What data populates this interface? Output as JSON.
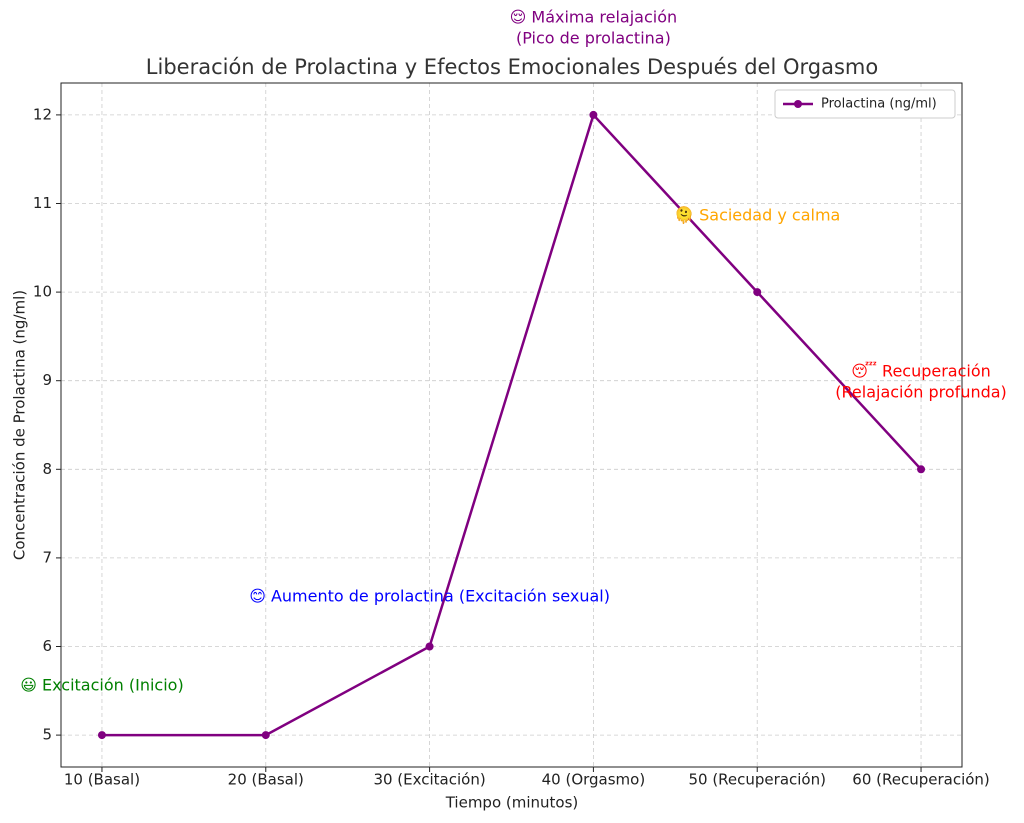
{
  "chart_data": {
    "type": "line",
    "title": "Liberación de Prolactina y Efectos Emocionales Después del Orgasmo",
    "x_label": "Tiempo (minutos)",
    "y_label": "Concentración de Prolactina (ng/ml)",
    "categories": [
      "10 (Basal)",
      "20 (Basal)",
      "30 (Excitación)",
      "40 (Orgasmo)",
      "50 (Recuperación)",
      "60 (Recuperación)"
    ],
    "series": [
      {
        "name": "Prolactina (ng/ml)",
        "color": "#800080",
        "values": [
          5,
          5,
          6,
          12,
          10,
          8
        ]
      }
    ],
    "ylim": [
      4.64,
      12.36
    ],
    "yticks": [
      5,
      6,
      7,
      8,
      9,
      10,
      11,
      12
    ],
    "grid": true,
    "legend": "upper right",
    "annotations": [
      {
        "lines": [
          "😃 Excitación (Inicio)"
        ],
        "color": "#008000"
      },
      {
        "lines": [
          "😊 Aumento de prolactina (Excitación sexual)"
        ],
        "color": "#0000ff"
      },
      {
        "lines": [
          "😌 Máxima relajación",
          "(Pico de prolactina)"
        ],
        "color": "#800080"
      },
      {
        "lines": [
          "🫠 Saciedad y calma"
        ],
        "color": "#ffa500"
      },
      {
        "lines": [
          "😴 Recuperación",
          "(Relajación profunda)"
        ],
        "color": "#ff0000"
      }
    ]
  }
}
